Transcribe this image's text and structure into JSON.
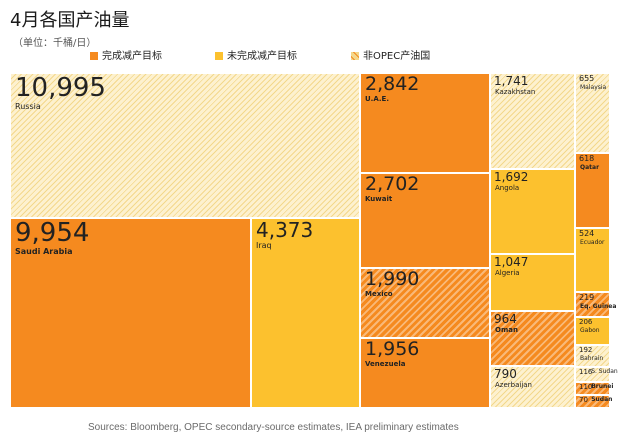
{
  "title": "4月各国产油量",
  "subtitle": "（单位：千桶/日）",
  "source": "Sources: Bloomberg, OPEC secondary-source estimates, IEA preliminary estimates",
  "legend": [
    {
      "key": "met",
      "label": "完成减产目标",
      "color": "#f58a1f",
      "style": "solid"
    },
    {
      "key": "unmet",
      "label": "未完成减产目标",
      "color": "#fcc12e",
      "style": "solid"
    },
    {
      "key": "nonopec",
      "label": "非OPEC产油国",
      "color": "#fbe7b0",
      "style": "hatched"
    }
  ],
  "colors": {
    "met": "#f58a1f",
    "unmet": "#fcc12e",
    "nonopec_bg": "#fdf1cf",
    "nonopec_hatch": "#f3d88c",
    "met_hatch": "#f9b978"
  },
  "chart_data": {
    "type": "treemap",
    "unit": "千桶/日",
    "items": [
      {
        "name": "Russia",
        "value": 10995,
        "label": "10,995",
        "group": "nonopec"
      },
      {
        "name": "Saudi Arabia",
        "value": 9954,
        "label": "9,954",
        "group": "met"
      },
      {
        "name": "Iraq",
        "value": 4373,
        "label": "4,373",
        "group": "unmet"
      },
      {
        "name": "U.A.E.",
        "value": 2842,
        "label": "2,842",
        "group": "met"
      },
      {
        "name": "Kuwait",
        "value": 2702,
        "label": "2,702",
        "group": "met"
      },
      {
        "name": "Mexico",
        "value": 1990,
        "label": "1,990",
        "group": "nonopec_met"
      },
      {
        "name": "Venezuela",
        "value": 1956,
        "label": "1,956",
        "group": "met"
      },
      {
        "name": "Kazakhstan",
        "value": 1741,
        "label": "1,741",
        "group": "nonopec"
      },
      {
        "name": "Angola",
        "value": 1692,
        "label": "1,692",
        "group": "unmet"
      },
      {
        "name": "Algeria",
        "value": 1047,
        "label": "1,047",
        "group": "unmet"
      },
      {
        "name": "Oman",
        "value": 964,
        "label": "964",
        "group": "nonopec_met"
      },
      {
        "name": "Azerbaijan",
        "value": 790,
        "label": "790",
        "group": "nonopec"
      },
      {
        "name": "Malaysia",
        "value": 655,
        "label": "655",
        "group": "nonopec"
      },
      {
        "name": "Qatar",
        "value": 618,
        "label": "618",
        "group": "met"
      },
      {
        "name": "Ecuador",
        "value": 524,
        "label": "524",
        "group": "unmet"
      },
      {
        "name": "Eq. Guinea",
        "value": 219,
        "label": "219",
        "group": "nonopec_met"
      },
      {
        "name": "Gabon",
        "value": 206,
        "label": "206",
        "group": "unmet"
      },
      {
        "name": "Bahrain",
        "value": 192,
        "label": "192",
        "group": "nonopec"
      },
      {
        "name": "S. Sudan",
        "value": 116,
        "label": "116",
        "group": "nonopec"
      },
      {
        "name": "Brunei",
        "value": 110,
        "label": "110",
        "group": "nonopec_met"
      },
      {
        "name": "Sudan",
        "value": 70,
        "label": "70",
        "group": "nonopec_met"
      }
    ]
  }
}
